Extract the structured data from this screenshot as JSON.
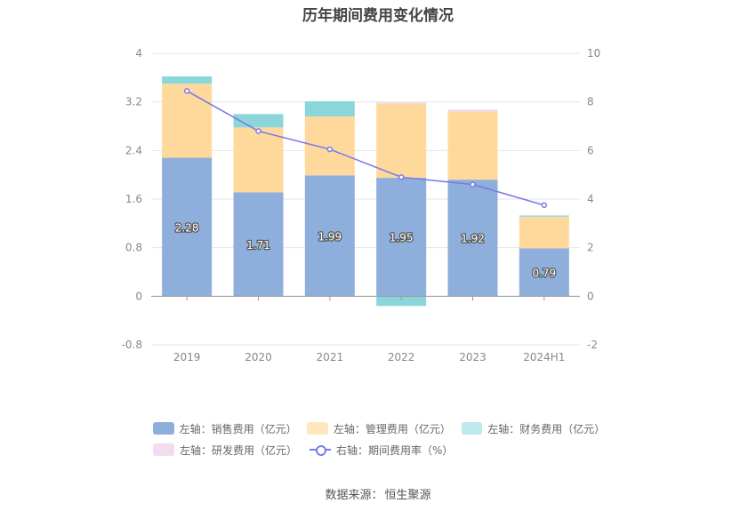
{
  "chart_data": {
    "type": "bar",
    "title": "历年期间费用变化情况",
    "categories": [
      "2019",
      "2020",
      "2021",
      "2022",
      "2023",
      "2024H1"
    ],
    "left_axis": {
      "ylim": [
        -0.8,
        4
      ],
      "ticks": [
        "4",
        "3.2",
        "2.4",
        "1.6",
        "0.8",
        "0",
        "-0.8"
      ],
      "tick_values": [
        4,
        3.2,
        2.4,
        1.6,
        0.8,
        0,
        -0.8
      ]
    },
    "right_axis": {
      "ylim": [
        -2,
        10
      ],
      "ticks": [
        "10",
        "8",
        "6",
        "4",
        "2",
        "0",
        "-2"
      ],
      "tick_values": [
        10,
        8,
        6,
        4,
        2,
        0,
        -2
      ]
    },
    "series": [
      {
        "name": "左轴：销售费用（亿元）",
        "axis": "left",
        "type": "bar",
        "color": "#8eaedb",
        "values": [
          2.28,
          1.71,
          1.99,
          1.95,
          1.92,
          0.79
        ],
        "labels": [
          "2.28",
          "1.71",
          "1.99",
          "1.95",
          "1.92",
          "0.79"
        ]
      },
      {
        "name": "左轴：管理费用（亿元）",
        "axis": "left",
        "type": "bar",
        "color": "#ffd99c",
        "values": [
          1.22,
          1.07,
          0.97,
          1.22,
          1.12,
          0.52
        ]
      },
      {
        "name": "左轴：财务费用（亿元）",
        "axis": "left",
        "type": "bar",
        "color": "#8ad6db",
        "values": [
          0.12,
          0.22,
          0.25,
          -0.16,
          0.0,
          0.02
        ]
      },
      {
        "name": "左轴：研发费用（亿元）",
        "axis": "left",
        "type": "bar",
        "color": "#f0d2ea",
        "values": [
          0.0,
          0.0,
          0.0,
          0.02,
          0.03,
          0.0
        ]
      },
      {
        "name": "右轴：期间费用率（%）",
        "axis": "right",
        "type": "line",
        "color": "#7b7ce8",
        "values": [
          8.45,
          6.8,
          6.05,
          4.9,
          4.6,
          3.75
        ]
      }
    ]
  },
  "legend": {
    "row1": [
      "左轴：销售费用（亿元）",
      "左轴：管理费用（亿元）",
      "左轴：财务费用（亿元）"
    ],
    "row2": [
      "左轴：研发费用（亿元）",
      "右轴：期间费用率（%）"
    ]
  },
  "source": {
    "label": "数据来源：",
    "value": "恒生聚源"
  }
}
